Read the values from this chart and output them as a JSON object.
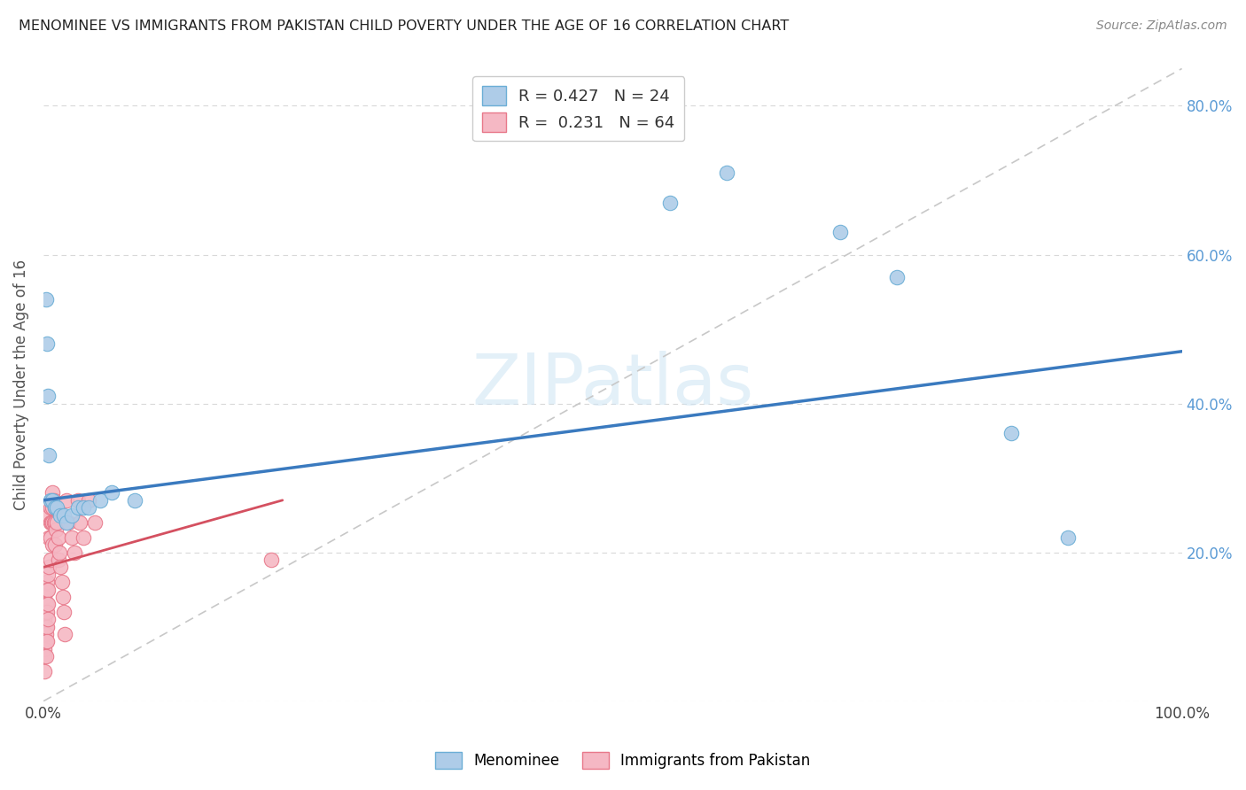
{
  "title": "MENOMINEE VS IMMIGRANTS FROM PAKISTAN CHILD POVERTY UNDER THE AGE OF 16 CORRELATION CHART",
  "source": "Source: ZipAtlas.com",
  "ylabel": "Child Poverty Under the Age of 16",
  "xlim": [
    0,
    1.0
  ],
  "ylim": [
    0,
    0.85
  ],
  "xticks": [
    0.0,
    0.25,
    0.5,
    0.75,
    1.0
  ],
  "xtick_labels": [
    "0.0%",
    "",
    "",
    "",
    "100.0%"
  ],
  "yticks": [
    0.0,
    0.2,
    0.4,
    0.6,
    0.8
  ],
  "ytick_labels_right": [
    "",
    "20.0%",
    "40.0%",
    "60.0%",
    "80.0%"
  ],
  "menominee_color": "#aecce8",
  "pakistan_color": "#f5b8c4",
  "menominee_edge": "#6baed6",
  "pakistan_edge": "#e8788a",
  "trend_blue": "#3a7abf",
  "trend_pink": "#d45060",
  "R_menominee": 0.427,
  "N_menominee": 24,
  "R_pakistan": 0.231,
  "N_pakistan": 64,
  "watermark_zip": "ZIP",
  "watermark_atlas": "atlas",
  "menominee_x": [
    0.002,
    0.003,
    0.004,
    0.005,
    0.006,
    0.008,
    0.01,
    0.012,
    0.015,
    0.018,
    0.02,
    0.025,
    0.03,
    0.035,
    0.04,
    0.05,
    0.06,
    0.08,
    0.55,
    0.6,
    0.7,
    0.75,
    0.85,
    0.9
  ],
  "menominee_y": [
    0.54,
    0.48,
    0.41,
    0.33,
    0.27,
    0.27,
    0.26,
    0.26,
    0.25,
    0.25,
    0.24,
    0.25,
    0.26,
    0.26,
    0.26,
    0.27,
    0.28,
    0.27,
    0.67,
    0.71,
    0.63,
    0.57,
    0.36,
    0.22
  ],
  "pakistan_x": [
    0.001,
    0.001,
    0.001,
    0.001,
    0.001,
    0.001,
    0.001,
    0.001,
    0.002,
    0.002,
    0.002,
    0.002,
    0.002,
    0.002,
    0.002,
    0.003,
    0.003,
    0.003,
    0.003,
    0.003,
    0.003,
    0.004,
    0.004,
    0.004,
    0.004,
    0.005,
    0.005,
    0.005,
    0.006,
    0.006,
    0.006,
    0.006,
    0.007,
    0.007,
    0.008,
    0.008,
    0.008,
    0.008,
    0.009,
    0.009,
    0.01,
    0.01,
    0.01,
    0.011,
    0.011,
    0.012,
    0.013,
    0.013,
    0.014,
    0.015,
    0.016,
    0.017,
    0.018,
    0.019,
    0.02,
    0.022,
    0.025,
    0.027,
    0.03,
    0.032,
    0.035,
    0.04,
    0.045,
    0.2
  ],
  "pakistan_y": [
    0.14,
    0.12,
    0.11,
    0.1,
    0.09,
    0.07,
    0.06,
    0.04,
    0.15,
    0.13,
    0.12,
    0.1,
    0.09,
    0.08,
    0.06,
    0.16,
    0.15,
    0.13,
    0.12,
    0.1,
    0.08,
    0.17,
    0.15,
    0.13,
    0.11,
    0.25,
    0.22,
    0.18,
    0.26,
    0.24,
    0.22,
    0.19,
    0.27,
    0.24,
    0.28,
    0.26,
    0.24,
    0.21,
    0.27,
    0.24,
    0.26,
    0.24,
    0.21,
    0.26,
    0.23,
    0.24,
    0.22,
    0.19,
    0.2,
    0.18,
    0.16,
    0.14,
    0.12,
    0.09,
    0.27,
    0.24,
    0.22,
    0.2,
    0.27,
    0.24,
    0.22,
    0.27,
    0.24,
    0.19
  ],
  "trend_blue_x0": 0.0,
  "trend_blue_y0": 0.27,
  "trend_blue_x1": 1.0,
  "trend_blue_y1": 0.47,
  "trend_pink_x0": 0.0,
  "trend_pink_y0": 0.18,
  "trend_pink_x1": 0.21,
  "trend_pink_y1": 0.27,
  "ref_line_x": [
    0.0,
    1.0
  ],
  "ref_line_y": [
    0.0,
    0.85
  ]
}
